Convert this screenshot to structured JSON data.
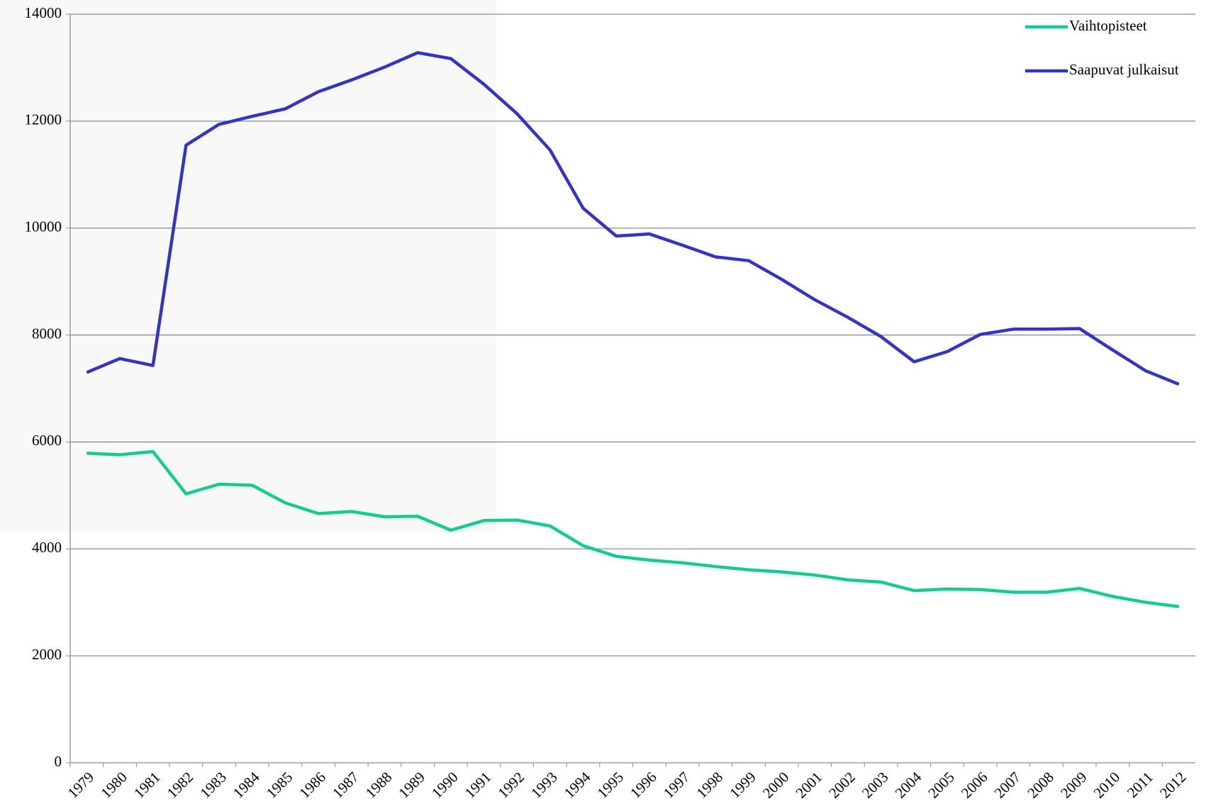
{
  "chart_data": {
    "type": "line",
    "categories": [
      "1979",
      "1980",
      "1981",
      "1982",
      "1983",
      "1984",
      "1985",
      "1986",
      "1987",
      "1988",
      "1989",
      "1990",
      "1991",
      "1992",
      "1993",
      "1994",
      "1995",
      "1996",
      "1997",
      "1998",
      "1999",
      "2000",
      "2001",
      "2002",
      "2003",
      "2004",
      "2005",
      "2006",
      "2007",
      "2008",
      "2009",
      "2010",
      "2011",
      "2012"
    ],
    "series": [
      {
        "name": "Vaihtopisteet",
        "color": "#12cc93",
        "values": [
          5790,
          5760,
          5820,
          5030,
          5210,
          5190,
          4860,
          4660,
          4700,
          4600,
          4610,
          4350,
          4530,
          4540,
          4430,
          4060,
          3860,
          3790,
          3740,
          3670,
          3610,
          3570,
          3510,
          3420,
          3380,
          3220,
          3250,
          3240,
          3190,
          3190,
          3260,
          3110,
          3000,
          2920
        ]
      },
      {
        "name": "Saapuvat julkaisut",
        "color": "#3434c4",
        "values": [
          7300,
          7560,
          7430,
          11550,
          11940,
          12090,
          12230,
          12550,
          12770,
          13010,
          13280,
          13170,
          12690,
          12140,
          11460,
          10370,
          9850,
          9890,
          9680,
          9460,
          9390,
          9040,
          8660,
          8330,
          7970,
          7500,
          7690,
          8010,
          8110,
          8110,
          8120,
          7720,
          7330,
          7080
        ]
      }
    ],
    "ylim": [
      0,
      14000
    ],
    "yticks": [
      0,
      2000,
      4000,
      6000,
      8000,
      10000,
      12000,
      14000
    ],
    "grid": true,
    "legend": "upper right"
  }
}
